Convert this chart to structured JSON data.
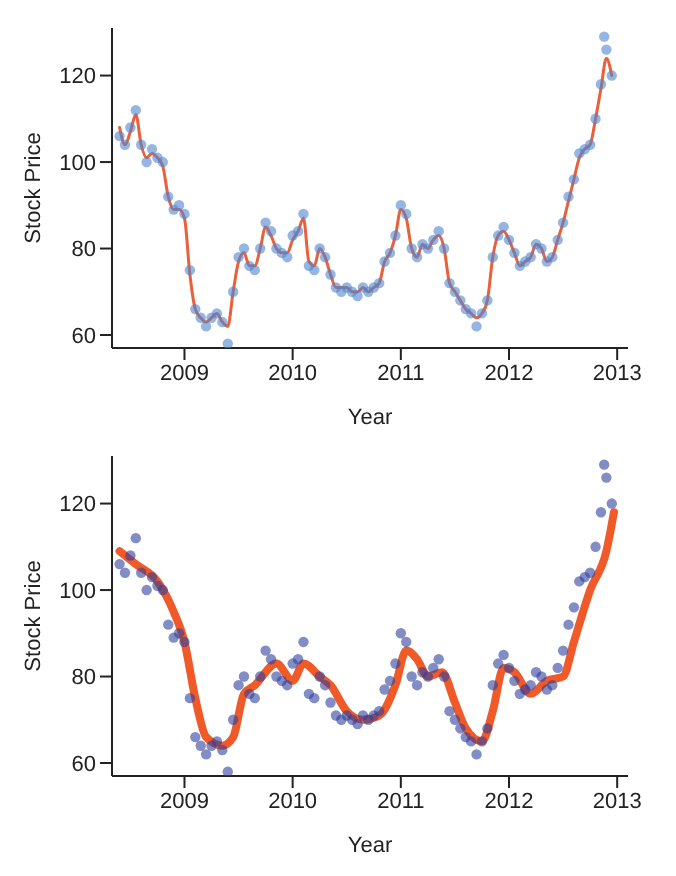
{
  "chart_data": [
    {
      "type": "scatter",
      "xlabel": "Year",
      "ylabel": "Stock Price",
      "xlim": [
        2008.33,
        2013.1
      ],
      "ylim": [
        57,
        131
      ],
      "xticks": [
        2009,
        2010,
        2011,
        2012,
        2013
      ],
      "yticks": [
        60,
        80,
        100,
        120
      ],
      "grid": false,
      "series": [
        {
          "marker": "circle",
          "color": "#4f86d0",
          "x": [
            2008.4,
            2008.45,
            2008.5,
            2008.55,
            2008.6,
            2008.65,
            2008.7,
            2008.75,
            2008.8,
            2008.85,
            2008.9,
            2008.95,
            2009,
            2009.05,
            2009.1,
            2009.15,
            2009.2,
            2009.25,
            2009.3,
            2009.35,
            2009.4,
            2009.45,
            2009.5,
            2009.55,
            2009.6,
            2009.65,
            2009.7,
            2009.75,
            2009.8,
            2009.85,
            2009.9,
            2009.95,
            2010,
            2010.05,
            2010.1,
            2010.15,
            2010.2,
            2010.25,
            2010.3,
            2010.35,
            2010.4,
            2010.45,
            2010.5,
            2010.55,
            2010.6,
            2010.65,
            2010.7,
            2010.75,
            2010.8,
            2010.85,
            2010.9,
            2010.95,
            2011,
            2011.05,
            2011.1,
            2011.15,
            2011.2,
            2011.25,
            2011.3,
            2011.35,
            2011.4,
            2011.45,
            2011.5,
            2011.55,
            2011.6,
            2011.65,
            2011.7,
            2011.75,
            2011.8,
            2011.85,
            2011.9,
            2011.95,
            2012,
            2012.05,
            2012.1,
            2012.15,
            2012.2,
            2012.25,
            2012.3,
            2012.35,
            2012.4,
            2012.45,
            2012.5,
            2012.55,
            2012.6,
            2012.65,
            2012.7,
            2012.75,
            2012.8,
            2012.85,
            2012.88,
            2012.9,
            2012.95
          ],
          "values": [
            106,
            104,
            108,
            112,
            104,
            100,
            103,
            101,
            100,
            92,
            89,
            90,
            88,
            75,
            66,
            64,
            62,
            64,
            65,
            63,
            58,
            70,
            78,
            80,
            76,
            75,
            80,
            86,
            84,
            80,
            79,
            78,
            83,
            84,
            88,
            76,
            75,
            80,
            78,
            74,
            71,
            70,
            71,
            70,
            69,
            71,
            70,
            71,
            72,
            77,
            79,
            83,
            90,
            88,
            80,
            78,
            81,
            80,
            82,
            84,
            80,
            72,
            70,
            68,
            66,
            65,
            62,
            65,
            68,
            78,
            83,
            85,
            82,
            79,
            76,
            77,
            78,
            81,
            80,
            77,
            78,
            82,
            86,
            92,
            96,
            102,
            103,
            104,
            110,
            118,
            129,
            126,
            120
          ]
        },
        {
          "type": "line",
          "marker": "none",
          "color": "#e8603c",
          "x": [
            2008.4,
            2008.45,
            2008.5,
            2008.55,
            2008.6,
            2008.65,
            2008.7,
            2008.75,
            2008.8,
            2008.85,
            2008.9,
            2008.95,
            2009,
            2009.05,
            2009.1,
            2009.15,
            2009.2,
            2009.25,
            2009.3,
            2009.35,
            2009.4,
            2009.45,
            2009.5,
            2009.55,
            2009.6,
            2009.65,
            2009.7,
            2009.75,
            2009.8,
            2009.85,
            2009.9,
            2009.95,
            2010,
            2010.05,
            2010.1,
            2010.15,
            2010.2,
            2010.25,
            2010.3,
            2010.35,
            2010.4,
            2010.45,
            2010.5,
            2010.55,
            2010.6,
            2010.65,
            2010.7,
            2010.75,
            2010.8,
            2010.85,
            2010.9,
            2010.95,
            2011,
            2011.05,
            2011.1,
            2011.15,
            2011.2,
            2011.25,
            2011.3,
            2011.35,
            2011.4,
            2011.45,
            2011.5,
            2011.55,
            2011.6,
            2011.65,
            2011.7,
            2011.75,
            2011.8,
            2011.85,
            2011.9,
            2011.95,
            2012,
            2012.05,
            2012.1,
            2012.15,
            2012.2,
            2012.25,
            2012.3,
            2012.35,
            2012.4,
            2012.45,
            2012.5,
            2012.55,
            2012.6,
            2012.65,
            2012.7,
            2012.75,
            2012.8,
            2012.85,
            2012.9,
            2012.95
          ],
          "values": [
            108,
            104,
            107,
            111,
            104,
            101,
            102,
            101,
            99,
            92,
            89,
            89,
            87,
            74,
            66,
            64,
            63,
            64,
            65,
            63,
            62,
            70,
            77,
            79,
            76,
            76,
            80,
            85,
            83,
            80,
            79,
            79,
            82,
            84,
            87,
            77,
            76,
            80,
            78,
            74,
            71,
            71,
            71,
            70,
            70,
            71,
            70,
            71,
            72,
            77,
            79,
            83,
            89,
            87,
            80,
            78,
            81,
            80,
            82,
            83,
            80,
            72,
            70,
            68,
            66,
            65,
            64,
            65,
            68,
            78,
            83,
            84,
            82,
            79,
            76,
            77,
            78,
            81,
            80,
            77,
            78,
            82,
            86,
            91,
            96,
            101,
            103,
            104,
            110,
            117,
            124,
            120
          ]
        }
      ]
    },
    {
      "type": "scatter",
      "xlabel": "Year",
      "ylabel": "Stock Price",
      "xlim": [
        2008.33,
        2013.1
      ],
      "ylim": [
        57,
        131
      ],
      "xticks": [
        2009,
        2010,
        2011,
        2012,
        2013
      ],
      "yticks": [
        60,
        80,
        100,
        120
      ],
      "grid": false,
      "series": [
        {
          "marker": "circle",
          "color": "#2f3f9e",
          "x": [
            2008.4,
            2008.45,
            2008.5,
            2008.55,
            2008.6,
            2008.65,
            2008.7,
            2008.75,
            2008.8,
            2008.85,
            2008.9,
            2008.95,
            2009,
            2009.05,
            2009.1,
            2009.15,
            2009.2,
            2009.25,
            2009.3,
            2009.35,
            2009.4,
            2009.45,
            2009.5,
            2009.55,
            2009.6,
            2009.65,
            2009.7,
            2009.75,
            2009.8,
            2009.85,
            2009.9,
            2009.95,
            2010,
            2010.05,
            2010.1,
            2010.15,
            2010.2,
            2010.25,
            2010.3,
            2010.35,
            2010.4,
            2010.45,
            2010.5,
            2010.55,
            2010.6,
            2010.65,
            2010.7,
            2010.75,
            2010.8,
            2010.85,
            2010.9,
            2010.95,
            2011,
            2011.05,
            2011.1,
            2011.15,
            2011.2,
            2011.25,
            2011.3,
            2011.35,
            2011.4,
            2011.45,
            2011.5,
            2011.55,
            2011.6,
            2011.65,
            2011.7,
            2011.75,
            2011.8,
            2011.85,
            2011.9,
            2011.95,
            2012,
            2012.05,
            2012.1,
            2012.15,
            2012.2,
            2012.25,
            2012.3,
            2012.35,
            2012.4,
            2012.45,
            2012.5,
            2012.55,
            2012.6,
            2012.65,
            2012.7,
            2012.75,
            2012.8,
            2012.85,
            2012.88,
            2012.9,
            2012.95
          ],
          "values": [
            106,
            104,
            108,
            112,
            104,
            100,
            103,
            101,
            100,
            92,
            89,
            90,
            88,
            75,
            66,
            64,
            62,
            64,
            65,
            63,
            58,
            70,
            78,
            80,
            76,
            75,
            80,
            86,
            84,
            80,
            79,
            78,
            83,
            84,
            88,
            76,
            75,
            80,
            78,
            74,
            71,
            70,
            71,
            70,
            69,
            71,
            70,
            71,
            72,
            77,
            79,
            83,
            90,
            88,
            80,
            78,
            81,
            80,
            82,
            84,
            80,
            72,
            70,
            68,
            66,
            65,
            62,
            65,
            68,
            78,
            83,
            85,
            82,
            79,
            76,
            77,
            78,
            81,
            80,
            77,
            78,
            82,
            86,
            92,
            96,
            102,
            103,
            104,
            110,
            118,
            129,
            126,
            120
          ]
        },
        {
          "type": "line",
          "marker": "none",
          "color": "#f05a28",
          "x": [
            2008.4,
            2008.55,
            2008.75,
            2008.9,
            2009,
            2009.1,
            2009.2,
            2009.35,
            2009.45,
            2009.55,
            2009.65,
            2009.85,
            2010,
            2010.1,
            2010.25,
            2010.35,
            2010.5,
            2010.65,
            2010.8,
            2010.95,
            2011.05,
            2011.15,
            2011.25,
            2011.38,
            2011.5,
            2011.6,
            2011.75,
            2011.85,
            2011.95,
            2012.05,
            2012.2,
            2012.35,
            2012.5,
            2012.6,
            2012.75,
            2012.9,
            2012.97
          ],
          "values": [
            109,
            106,
            102,
            95,
            88,
            75,
            66,
            64,
            66,
            76,
            78,
            83,
            79,
            83,
            80,
            78,
            72,
            70,
            71,
            78,
            86,
            84,
            80,
            81,
            74,
            68,
            65,
            72,
            82,
            81,
            76,
            79,
            80,
            88,
            100,
            109,
            118
          ]
        }
      ]
    }
  ]
}
